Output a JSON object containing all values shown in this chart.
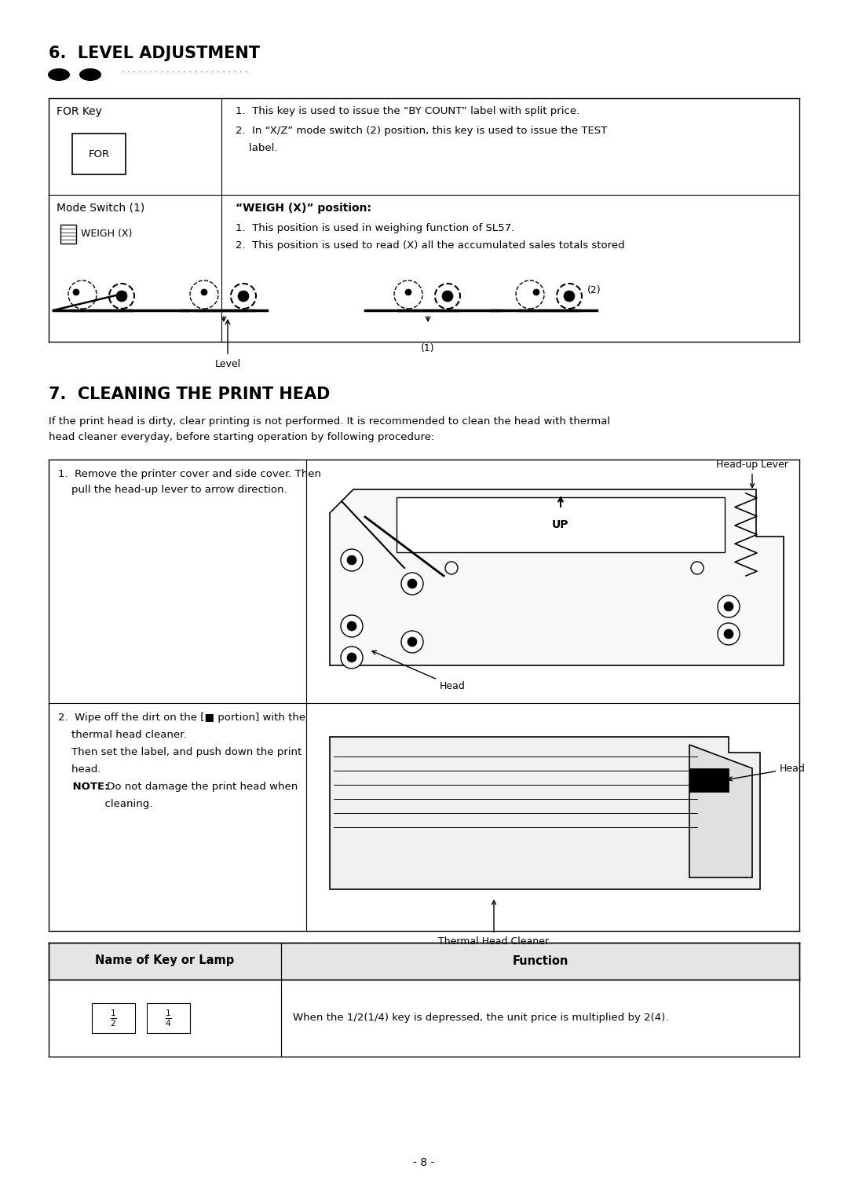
{
  "bg_color": "#ffffff",
  "section6_title": "6.  LEVEL ADJUSTMENT",
  "section7_title": "7.  CLEANING THE PRINT HEAD",
  "section7_intro_1": "If the print head is dirty, clear printing is not performed. It is recommended to clean the head with thermal",
  "section7_intro_2": "head cleaner everyday, before starting operation by following procedure:",
  "table1_row1_left": "FOR Key",
  "table1_row1_right_1": "1.  This key is used to issue the “BY COUNT” label with split price.",
  "table1_row1_right_2": "2.  In “X/Z” mode switch (2) position, this key is used to issue the TEST",
  "table1_row1_right_3": "    label.",
  "table1_row2_left_title": "Mode Switch (1)",
  "table1_row2_left_sub": "WEIGH (X)",
  "table1_row2_right_title": "“WEIGH (X)” position:",
  "table1_row2_right_1": "1.  This position is used in weighing function of SL57.",
  "table1_row2_right_2": "2.  This position is used to read (X) all the accumulated sales totals stored",
  "level_label": "Level",
  "label_1": "(1)",
  "label_2": "(2)",
  "step1_text_1": "1.  Remove the printer cover and side cover. Then",
  "step1_text_2": "    pull the head-up lever to arrow direction.",
  "step1_label_lever": "Head-up Lever",
  "step1_label_head": "Head",
  "step2_text_1": "2.  Wipe off the dirt on the [■ portion] with the",
  "step2_text_2": "    thermal head cleaner.",
  "step2_text_3": "    Then set the label, and push down the print",
  "step2_text_4": "    head.",
  "step2_text_5": "    NOTE: Do not damage the print head when",
  "step2_text_6": "              cleaning.",
  "step2_label_head": "Head",
  "step2_label_cleaner": "Thermal Head Cleaner",
  "bottom_table_col1": "Name of Key or Lamp",
  "bottom_table_col2": "Function",
  "bottom_table_row1_right": "When the 1/2(1/4) key is depressed, the unit price is multiplied by 2(4).",
  "page_number": "- 8 -"
}
